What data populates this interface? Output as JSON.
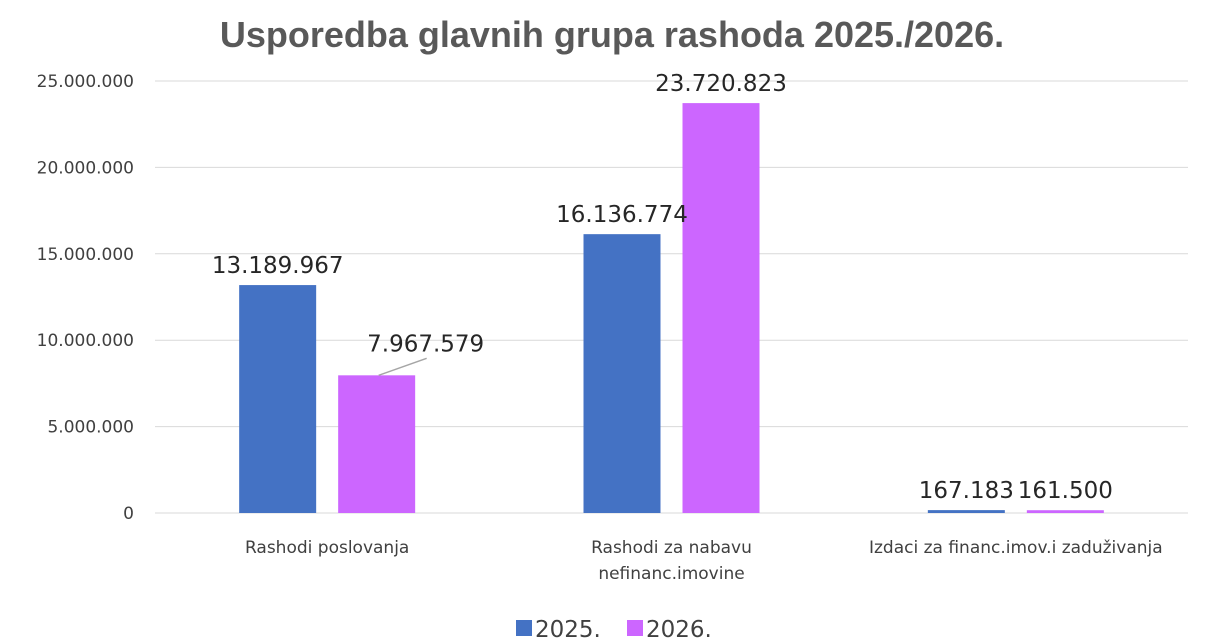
{
  "chart_data": {
    "type": "bar",
    "title": "Usporedba glavnih grupa rashoda 2025./2026.",
    "categories": [
      [
        "Rashodi poslovanja"
      ],
      [
        "Rashodi za nabavu",
        "nefinanc.imovine"
      ],
      [
        "Izdaci za financ.imov.i zaduživanja"
      ]
    ],
    "series": [
      {
        "name": "2025.",
        "color": "#4472c4",
        "values": [
          13189967,
          16136774,
          167183
        ],
        "labels": [
          "13.189.967",
          "16.136.774",
          "167.183"
        ]
      },
      {
        "name": "2026.",
        "color": "#cc66ff",
        "values": [
          7967579,
          23720823,
          161500
        ],
        "labels": [
          "7.967.579",
          "23.720.823",
          "161.500"
        ]
      }
    ],
    "ylim": [
      0,
      25000000
    ],
    "yticks": [
      0,
      5000000,
      10000000,
      15000000,
      20000000,
      25000000
    ],
    "ytick_labels": [
      "0",
      "5.000.000",
      "10.000.000",
      "15.000.000",
      "20.000.000",
      "25.000.000"
    ],
    "grid": true,
    "legend_position": "bottom"
  }
}
